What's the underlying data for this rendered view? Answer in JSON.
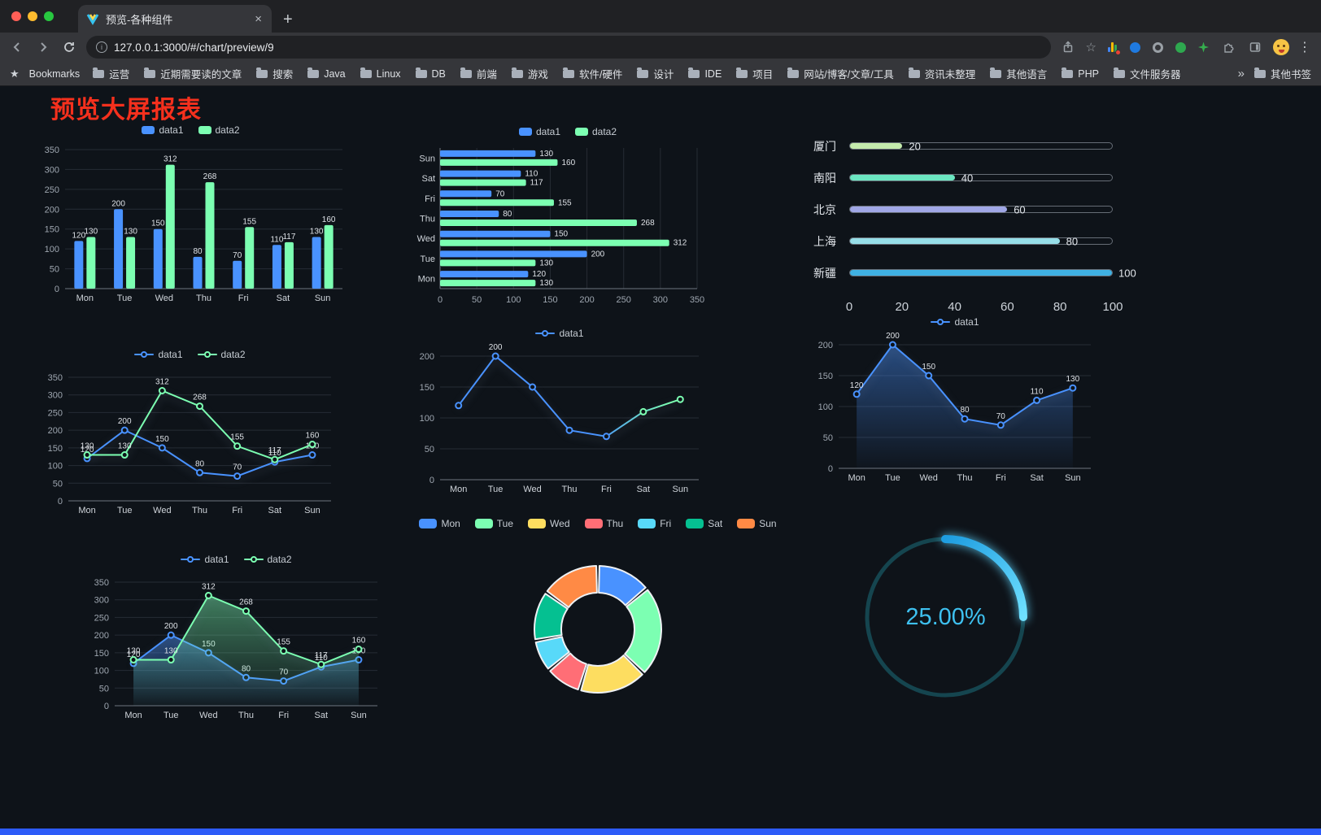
{
  "browser": {
    "tab": {
      "title": "预览-各种组件",
      "close_glyph": "×"
    },
    "new_tab_glyph": "+",
    "toolbar": {
      "url": "127.0.0.1:3000/#/chart/preview/9"
    },
    "bookmarks_bar": {
      "label": "Bookmarks",
      "items": [
        "运营",
        "近期需要读的文章",
        "搜索",
        "Java",
        "Linux",
        "DB",
        "前端",
        "游戏",
        "软件/硬件",
        "设计",
        "IDE",
        "项目",
        "网站/博客/文章/工具",
        "资讯未整理",
        "其他语言",
        "PHP",
        "文件服务器"
      ],
      "overflow": "»",
      "other": "其他书签"
    }
  },
  "page": {
    "title": "预览大屏报表"
  },
  "palette": {
    "title_red": "#f5301d",
    "bottom_bar": "#2d5bf8",
    "data1": "#4992ff",
    "data2": "#7cffb2"
  },
  "chart_data": [
    {
      "id": "grouped-bar",
      "type": "bar",
      "categories": [
        "Mon",
        "Tue",
        "Wed",
        "Thu",
        "Fri",
        "Sat",
        "Sun"
      ],
      "series": [
        {
          "name": "data1",
          "color": "#4992ff",
          "values": [
            120,
            200,
            150,
            80,
            70,
            110,
            130
          ]
        },
        {
          "name": "data2",
          "color": "#7cffb2",
          "values": [
            130,
            130,
            312,
            268,
            155,
            117,
            160
          ]
        }
      ],
      "ylim": [
        0,
        350
      ],
      "ytick": 50,
      "legend": [
        "data1",
        "data2"
      ],
      "legend_marker": "rect"
    },
    {
      "id": "grouped-bar-horizontal",
      "type": "bar-h",
      "categories": [
        "Sun",
        "Sat",
        "Fri",
        "Thu",
        "Wed",
        "Tue",
        "Mon"
      ],
      "series": [
        {
          "name": "data1",
          "color": "#4992ff",
          "values": [
            130,
            110,
            70,
            80,
            150,
            200,
            120
          ]
        },
        {
          "name": "data2",
          "color": "#7cffb2",
          "values": [
            160,
            117,
            155,
            268,
            312,
            130,
            130
          ]
        }
      ],
      "xlim": [
        0,
        350
      ],
      "xtick": 50,
      "legend": [
        "data1",
        "data2"
      ],
      "legend_marker": "rect"
    },
    {
      "id": "city-progress",
      "type": "progress",
      "max": 100,
      "xticks": [
        0,
        20,
        40,
        60,
        80,
        100
      ],
      "items": [
        {
          "label": "厦门",
          "value": 20,
          "color": "#c4ebad"
        },
        {
          "label": "南阳",
          "value": 40,
          "color": "#6be6c1"
        },
        {
          "label": "北京",
          "value": 60,
          "color": "#a0a7e6"
        },
        {
          "label": "上海",
          "value": 80,
          "color": "#96dee8"
        },
        {
          "label": "新疆",
          "value": 100,
          "color": "#3fb1e3"
        }
      ]
    },
    {
      "id": "line-two-series",
      "type": "line",
      "categories": [
        "Mon",
        "Tue",
        "Wed",
        "Thu",
        "Fri",
        "Sat",
        "Sun"
      ],
      "series": [
        {
          "name": "data1",
          "color": "#4992ff",
          "values": [
            120,
            200,
            150,
            80,
            70,
            110,
            130
          ],
          "labels": true
        },
        {
          "name": "data2",
          "color": "#7cffb2",
          "values": [
            130,
            130,
            312,
            268,
            155,
            117,
            160
          ],
          "labels": true
        }
      ],
      "ylim": [
        0,
        350
      ],
      "ytick": 50,
      "legend": [
        "data1",
        "data2"
      ],
      "legend_marker": "line"
    },
    {
      "id": "line-gradient",
      "type": "line",
      "categories": [
        "Mon",
        "Tue",
        "Wed",
        "Thu",
        "Fri",
        "Sat",
        "Sun"
      ],
      "series": [
        {
          "name": "data1",
          "color": "#4992ff",
          "color_end": "#7cffb2",
          "values": [
            120,
            200,
            150,
            80,
            70,
            110,
            130
          ],
          "label_max_only": true
        }
      ],
      "ylim": [
        0,
        200
      ],
      "ytick": 50,
      "legend": [
        "data1"
      ],
      "legend_marker": "line"
    },
    {
      "id": "area-single",
      "type": "line",
      "categories": [
        "Mon",
        "Tue",
        "Wed",
        "Thu",
        "Fri",
        "Sat",
        "Sun"
      ],
      "series": [
        {
          "name": "data1",
          "color": "#4992ff",
          "values": [
            120,
            200,
            150,
            80,
            70,
            110,
            130
          ],
          "labels": true,
          "area": true
        }
      ],
      "ylim": [
        0,
        200
      ],
      "ytick": 50,
      "legend": [
        "data1"
      ],
      "legend_marker": "line"
    },
    {
      "id": "area-two-series",
      "type": "line",
      "categories": [
        "Mon",
        "Tue",
        "Wed",
        "Thu",
        "Fri",
        "Sat",
        "Sun"
      ],
      "series": [
        {
          "name": "data1",
          "color": "#4992ff",
          "values": [
            120,
            200,
            150,
            80,
            70,
            110,
            130
          ],
          "labels": true,
          "area": true
        },
        {
          "name": "data2",
          "color": "#7cffb2",
          "values": [
            130,
            130,
            312,
            268,
            155,
            117,
            160
          ],
          "labels": true,
          "area": true
        }
      ],
      "ylim": [
        0,
        350
      ],
      "ytick": 50,
      "legend": [
        "data1",
        "data2"
      ],
      "legend_marker": "line"
    },
    {
      "id": "week-donut",
      "type": "pie",
      "items": [
        {
          "name": "Mon",
          "value": 120,
          "color": "#4992ff"
        },
        {
          "name": "Tue",
          "value": 200,
          "color": "#7cffb2"
        },
        {
          "name": "Wed",
          "value": 150,
          "color": "#fddd60"
        },
        {
          "name": "Thu",
          "value": 80,
          "color": "#ff6e76"
        },
        {
          "name": "Fri",
          "value": 70,
          "color": "#58d9f9"
        },
        {
          "name": "Sat",
          "value": 110,
          "color": "#05c091"
        },
        {
          "name": "Sun",
          "value": 130,
          "color": "#ff8a45"
        }
      ],
      "legend": [
        "Mon",
        "Tue",
        "Wed",
        "Thu",
        "Fri",
        "Sat",
        "Sun"
      ],
      "legend_marker": "pill"
    },
    {
      "id": "percent-gauge",
      "type": "gauge",
      "percent": 25,
      "label": "25.00%",
      "ring_color": "#15454f",
      "arc_colors": [
        "#1e9de0",
        "#6fe0ff"
      ],
      "text_color": "#3ec1f0"
    }
  ]
}
